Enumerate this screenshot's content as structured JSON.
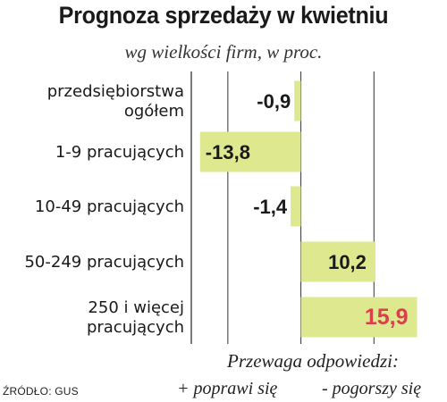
{
  "chart_data": {
    "type": "bar",
    "orientation": "horizontal",
    "title": "Prognoza sprzedaży w kwietniu",
    "subtitle": "wg wielkości firm, w proc.",
    "categories": [
      [
        "przedsiębiorstwa",
        "ogółem"
      ],
      [
        "1-9 pracujących"
      ],
      [
        "10-49 pracujących"
      ],
      [
        "50-249 pracujących"
      ],
      [
        "250 i więcej",
        "pracujących"
      ]
    ],
    "values": [
      -0.9,
      -13.8,
      -1.4,
      10.2,
      15.9
    ],
    "value_labels": [
      "-0,9",
      "-13,8",
      "-1,4",
      "10,2",
      "15,9"
    ],
    "highlight_index": 4,
    "xlim": [
      -15,
      20
    ],
    "gridlines": [
      -10,
      0,
      10
    ],
    "bar_color": "#dde88f",
    "highlight_color": "#d9414a",
    "legend_title": "Przewaga odpowiedzi:",
    "legend_positive": "+ poprawi się",
    "legend_negative": "- pogorszy się",
    "source": "ŹRÓDŁO: GUS"
  }
}
